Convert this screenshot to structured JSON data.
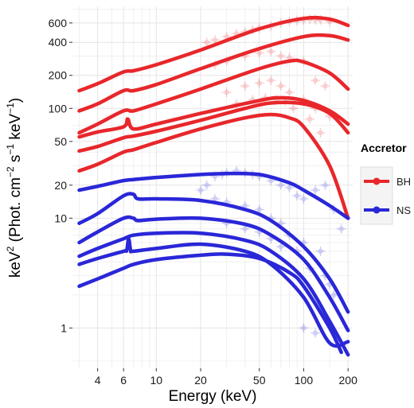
{
  "chart_data": {
    "type": "line",
    "title": "",
    "xlabel": "Energy (keV)",
    "ylabel_parts": [
      "keV",
      "2",
      " (Phot. cm",
      "−2",
      " s",
      "−1",
      " keV",
      "−1",
      ")"
    ],
    "xscale": "log",
    "yscale": "log",
    "xlim": [
      2.7,
      215
    ],
    "ylim": [
      0.43,
      850
    ],
    "x_ticks": [
      4,
      6,
      10,
      20,
      50,
      100,
      200
    ],
    "y_ticks": [
      1,
      10,
      20,
      50,
      100,
      200,
      400,
      600
    ],
    "grid": true,
    "legend": {
      "title": "Accretor",
      "position": "right",
      "entries": [
        {
          "label": "BH",
          "color": "#e8272b"
        },
        {
          "label": "NS",
          "color": "#2a27d8"
        }
      ]
    },
    "series": [
      {
        "group": "BH",
        "color": "#e8272b",
        "x": [
          3,
          4,
          6,
          7,
          10,
          20,
          50,
          100,
          150,
          200
        ],
        "y": [
          145,
          168,
          215,
          220,
          250,
          340,
          530,
          660,
          650,
          570
        ]
      },
      {
        "group": "BH",
        "color": "#e8272b",
        "x": [
          3,
          4,
          6,
          7,
          10,
          20,
          50,
          100,
          150,
          200
        ],
        "y": [
          95,
          110,
          145,
          145,
          165,
          230,
          350,
          450,
          460,
          420
        ]
      },
      {
        "group": "BH",
        "color": "#e8272b",
        "x": [
          3,
          4,
          6,
          7,
          10,
          20,
          50,
          80,
          100,
          150,
          200
        ],
        "y": [
          60,
          72,
          95,
          95,
          110,
          150,
          230,
          270,
          265,
          210,
          150
        ]
      },
      {
        "group": "BH",
        "color": "#e8272b",
        "x": [
          3,
          4,
          6,
          6.4,
          7,
          10,
          20,
          50,
          70,
          100,
          150,
          200
        ],
        "y": [
          55,
          61,
          68,
          80,
          65,
          72,
          90,
          118,
          125,
          118,
          95,
          72
        ]
      },
      {
        "group": "BH",
        "color": "#e8272b",
        "x": [
          3,
          4,
          6,
          7,
          10,
          20,
          40,
          60,
          100,
          150,
          200
        ],
        "y": [
          41,
          45,
          54,
          56,
          62,
          78,
          100,
          112,
          110,
          90,
          60
        ]
      },
      {
        "group": "BH",
        "color": "#e8272b",
        "x": [
          3,
          4,
          6,
          7,
          10,
          20,
          40,
          60,
          80,
          100,
          150,
          200
        ],
        "y": [
          27,
          31,
          40,
          42,
          49,
          65,
          82,
          88,
          82,
          68,
          30,
          10
        ]
      },
      {
        "group": "NS",
        "color": "#2a27d8",
        "x": [
          3,
          4,
          6,
          7,
          10,
          20,
          30,
          50,
          80,
          100,
          150,
          200
        ],
        "y": [
          18,
          19.5,
          22,
          22.5,
          23.5,
          25,
          25.5,
          25,
          21,
          18,
          13,
          10
        ]
      },
      {
        "group": "NS",
        "color": "#2a27d8",
        "x": [
          3,
          4,
          6,
          7,
          7.5,
          10,
          20,
          40,
          60,
          100,
          150,
          200
        ],
        "y": [
          9,
          11,
          16,
          16.5,
          15,
          15,
          14.5,
          12,
          9.5,
          5.5,
          2.8,
          1.4
        ]
      },
      {
        "group": "NS",
        "color": "#2a27d8",
        "x": [
          3,
          4,
          6,
          7,
          7.5,
          10,
          20,
          40,
          60,
          100,
          150,
          200
        ],
        "y": [
          6,
          7.5,
          10,
          10,
          9.5,
          9.8,
          10,
          8.8,
          7,
          4.2,
          1.9,
          0.95
        ]
      },
      {
        "group": "NS",
        "color": "#2a27d8",
        "x": [
          3,
          4,
          6,
          7,
          10,
          20,
          40,
          60,
          100,
          150,
          200
        ],
        "y": [
          4.5,
          5.3,
          6.5,
          7,
          7.3,
          7.3,
          6.3,
          5,
          2.8,
          1.15,
          0.57
        ]
      },
      {
        "group": "NS",
        "color": "#2a27d8",
        "x": [
          3,
          4,
          6,
          6.3,
          6.5,
          6.7,
          7,
          10,
          20,
          40,
          60,
          100,
          150,
          200
        ],
        "y": [
          3.8,
          4.3,
          5,
          5.1,
          6.5,
          5.1,
          5,
          5.3,
          5.8,
          5,
          3.8,
          1.9,
          0.73,
          0.75
        ]
      },
      {
        "group": "NS",
        "color": "#2a27d8",
        "x": [
          3,
          4,
          6,
          7,
          10,
          20,
          30,
          50,
          80,
          100,
          150,
          180
        ],
        "y": [
          2.4,
          2.8,
          3.5,
          3.8,
          4.2,
          4.6,
          4.7,
          4.3,
          3.2,
          2.4,
          1,
          0.6
        ]
      }
    ],
    "observations": [
      {
        "group": "BH",
        "x": [
          22,
          25,
          30,
          35,
          40,
          45,
          50,
          60,
          70,
          80,
          90,
          100,
          110,
          120,
          130,
          150,
          25,
          30,
          40,
          50,
          60,
          70,
          80,
          100,
          120,
          140,
          30,
          40,
          50,
          60,
          70,
          80,
          100,
          120,
          150,
          35,
          45,
          55,
          65,
          75,
          85,
          110,
          130
        ],
        "y": [
          400,
          420,
          450,
          480,
          500,
          520,
          540,
          560,
          600,
          620,
          630,
          640,
          650,
          640,
          640,
          620,
          250,
          270,
          300,
          320,
          330,
          300,
          290,
          270,
          180,
          160,
          140,
          160,
          170,
          180,
          160,
          140,
          120,
          100,
          85,
          110,
          120,
          125,
          120,
          115,
          100,
          80,
          60
        ]
      },
      {
        "group": "NS",
        "x": [
          20,
          22,
          25,
          28,
          30,
          35,
          40,
          45,
          50,
          60,
          70,
          80,
          90,
          100,
          120,
          140,
          160,
          180,
          25,
          30,
          40,
          50,
          60,
          70,
          80,
          100,
          130,
          30,
          40,
          50,
          60,
          70,
          90,
          110,
          150,
          100,
          120,
          140,
          160
        ],
        "y": [
          18,
          20,
          24,
          25,
          26,
          27,
          26,
          25,
          24,
          22,
          20,
          19,
          16,
          15,
          18,
          20,
          12,
          8,
          15,
          14,
          13,
          12,
          10,
          9,
          7,
          6,
          5,
          9,
          8,
          7.5,
          6.5,
          5.5,
          5,
          3.5,
          2.5,
          1,
          0.9,
          3,
          2
        ]
      }
    ]
  }
}
